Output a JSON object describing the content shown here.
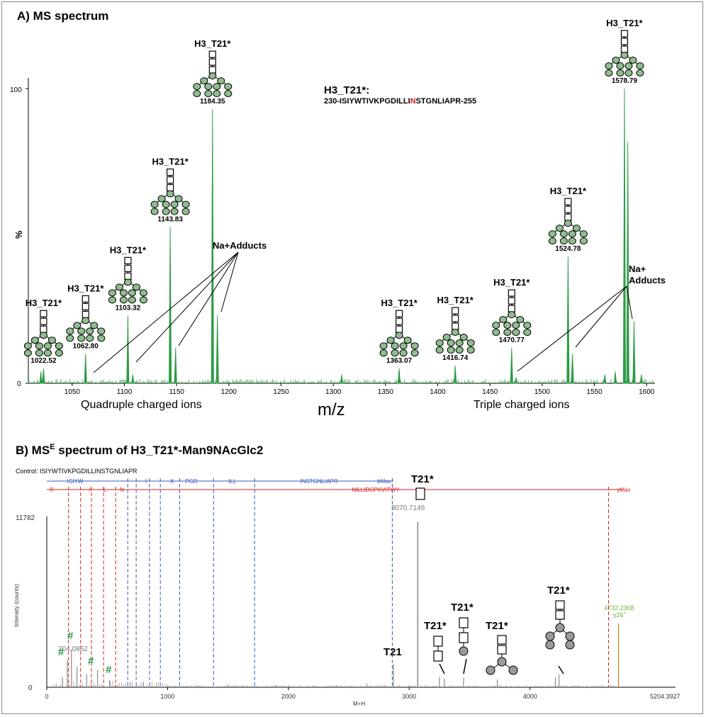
{
  "panelA": {
    "title": "A) MS spectrum",
    "sequence_label": "H3_T21*:",
    "sequence_prefix": "230-ISIYWTIVKPGDILLI",
    "sequence_highlight": "N",
    "sequence_suffix": "STGNLIAPR-255",
    "ylabel": "%",
    "xlabel": "m/z",
    "y_tick_labels": [
      "100",
      "0"
    ],
    "group_quadruple": "Quadruple charged ions",
    "group_triple": "Triple charged ions",
    "na_adducts_1": "Na+Adducts",
    "na_adducts_2a": "Na+",
    "na_adducts_2b": "Adducts",
    "peak_glycan_label": "H3_T21*",
    "accent_color": "#2e9b46",
    "highlight_color": "#d62020"
  },
  "panelB": {
    "title_prefix": "B) MS",
    "title_sup": "E",
    "title_suffix": " spectrum of H3_T21*-Man9NAcGlc2",
    "control": "Control: ISIYWTIVKPGDILLINSTGNLIAPR",
    "ylabel": "Intensity (counts)",
    "xlabel": "M+H",
    "ymax_label": "11782",
    "y_zero": "0",
    "xmax_label": "5204.3927",
    "b_fragments": [
      "ISIYW",
      "I",
      "K",
      "PGD",
      "ILL",
      "INSTGNLIAPR",
      "bMax"
    ],
    "y_fragments": [
      "R",
      "I",
      "L",
      "N",
      "NILLIDGPKVITWY",
      "yMax"
    ],
    "peak_3070": "3070.7146",
    "peak_4732_a": "4732.2368",
    "peak_4732_b": "y26\"",
    "peak_204": "204.0862",
    "t21": "T21",
    "t21_star": "T21*",
    "hash": "#",
    "b_color": "#3b5bbf",
    "y_color": "#d62020",
    "green_color": "#6cb83a"
  },
  "chart_data": [
    {
      "type": "line",
      "title": "A) MS spectrum",
      "xlabel": "m/z",
      "ylabel": "%",
      "xlim": [
        1008,
        1608
      ],
      "ylim": [
        0,
        100
      ],
      "x_ticks": [
        1050,
        1100,
        1150,
        1200,
        1250,
        1300,
        1350,
        1400,
        1450,
        1500,
        1550,
        1600
      ],
      "peaks": [
        {
          "mz": 1022.52,
          "label": "1022.52",
          "intensity": 5
        },
        {
          "mz": 1062.8,
          "label": "1062.80",
          "intensity": 10
        },
        {
          "mz": 1103.32,
          "label": "1103.32",
          "intensity": 23
        },
        {
          "mz": 1143.83,
          "label": "1143.83",
          "intensity": 53
        },
        {
          "mz": 1184.35,
          "label": "1184.35",
          "intensity": 93
        },
        {
          "mz": 1363.07,
          "label": "1363.07",
          "intensity": 5
        },
        {
          "mz": 1416.74,
          "label": "1416.74",
          "intensity": 6
        },
        {
          "mz": 1470.77,
          "label": "1470.77",
          "intensity": 12
        },
        {
          "mz": 1524.78,
          "label": "1524.78",
          "intensity": 43
        },
        {
          "mz": 1578.79,
          "label": "1578.79",
          "intensity": 100
        }
      ],
      "minor_peaks": [
        {
          "mz": 1020,
          "intensity": 4
        },
        {
          "mz": 1108,
          "intensity": 3
        },
        {
          "mz": 1149,
          "intensity": 12
        },
        {
          "mz": 1189,
          "intensity": 23
        },
        {
          "mz": 1308,
          "intensity": 3
        },
        {
          "mz": 1475,
          "intensity": 2
        },
        {
          "mz": 1529,
          "intensity": 10
        },
        {
          "mz": 1582,
          "intensity": 82
        },
        {
          "mz": 1588,
          "intensity": 21
        },
        {
          "mz": 1560,
          "intensity": 3
        },
        {
          "mz": 1570,
          "intensity": 4
        },
        {
          "mz": 1595,
          "intensity": 3
        }
      ]
    },
    {
      "type": "bar",
      "title": "B) MSE spectrum of H3_T21*-Man9NAcGlc2",
      "xlabel": "M+H",
      "ylabel": "Intensity (counts)",
      "xlim": [
        0,
        5204.3927
      ],
      "ylim": [
        0,
        11782
      ],
      "x_ticks": [
        0,
        1000,
        2000,
        3000,
        4000
      ],
      "b_ion_lines": [
        670,
        740,
        850,
        940,
        1100,
        1380,
        1720,
        2860
      ],
      "y_ion_lines": [
        180,
        280,
        370,
        470,
        570,
        4650
      ],
      "peaks": [
        {
          "mz": 3070.7146,
          "intensity": 11400,
          "label": "3070.7146"
        },
        {
          "mz": 4732.2368,
          "intensity": 4400,
          "label": "4732.2368 y26\""
        },
        {
          "mz": 204.0862,
          "intensity": 2600,
          "label": "204.0862"
        },
        {
          "mz": 2870,
          "intensity": 1600
        },
        {
          "mz": 3250,
          "intensity": 700
        },
        {
          "mz": 3290,
          "intensity": 600
        },
        {
          "mz": 3450,
          "intensity": 650
        },
        {
          "mz": 3730,
          "intensity": 550
        },
        {
          "mz": 4210,
          "intensity": 700
        },
        {
          "mz": 4240,
          "intensity": 900
        },
        {
          "mz": 170,
          "intensity": 1900
        },
        {
          "mz": 250,
          "intensity": 1400
        },
        {
          "mz": 330,
          "intensity": 900
        },
        {
          "mz": 420,
          "intensity": 1200
        },
        {
          "mz": 520,
          "intensity": 500
        },
        {
          "mz": 130,
          "intensity": 700
        },
        {
          "mz": 690,
          "intensity": 350
        },
        {
          "mz": 800,
          "intensity": 300
        },
        {
          "mz": 1500,
          "intensity": 180
        },
        {
          "mz": 1900,
          "intensity": 150
        },
        {
          "mz": 2400,
          "intensity": 150
        },
        {
          "mz": 2650,
          "intensity": 250
        }
      ]
    }
  ]
}
